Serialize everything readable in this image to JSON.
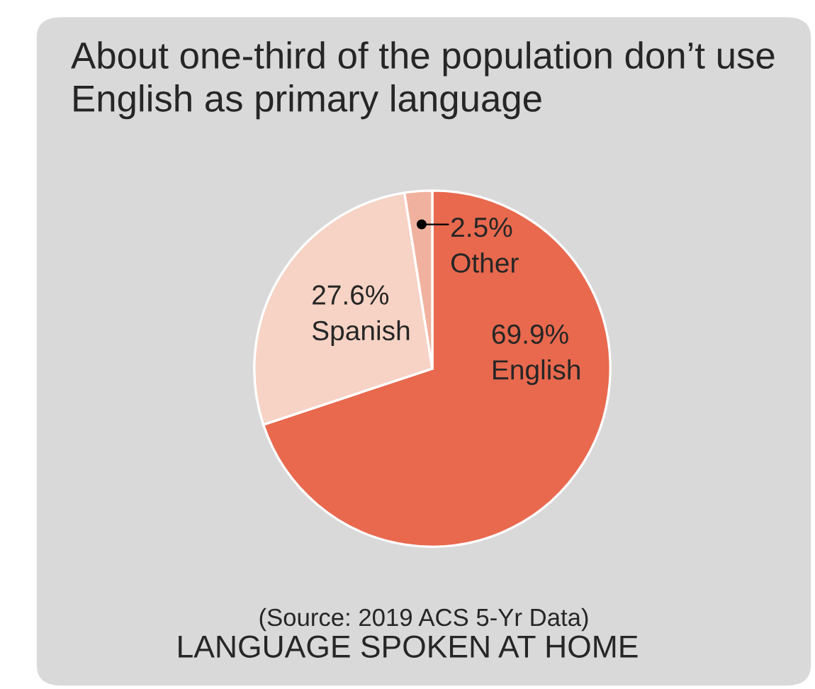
{
  "chart_data": {
    "type": "pie",
    "title": "About one-third of the population don’t use English as primary language",
    "categories": [
      "English",
      "Spanish",
      "Other"
    ],
    "values": [
      69.9,
      27.6,
      2.5
    ],
    "value_labels": [
      "69.9%",
      "27.6%",
      "2.5%"
    ],
    "colors": [
      "#e8694e",
      "#f6d3c5",
      "#f0b29e"
    ],
    "annotations": [
      "(Source: 2019 ACS 5-Yr Data)",
      "LANGUAGE SPOKEN AT HOME"
    ],
    "legend": false
  }
}
